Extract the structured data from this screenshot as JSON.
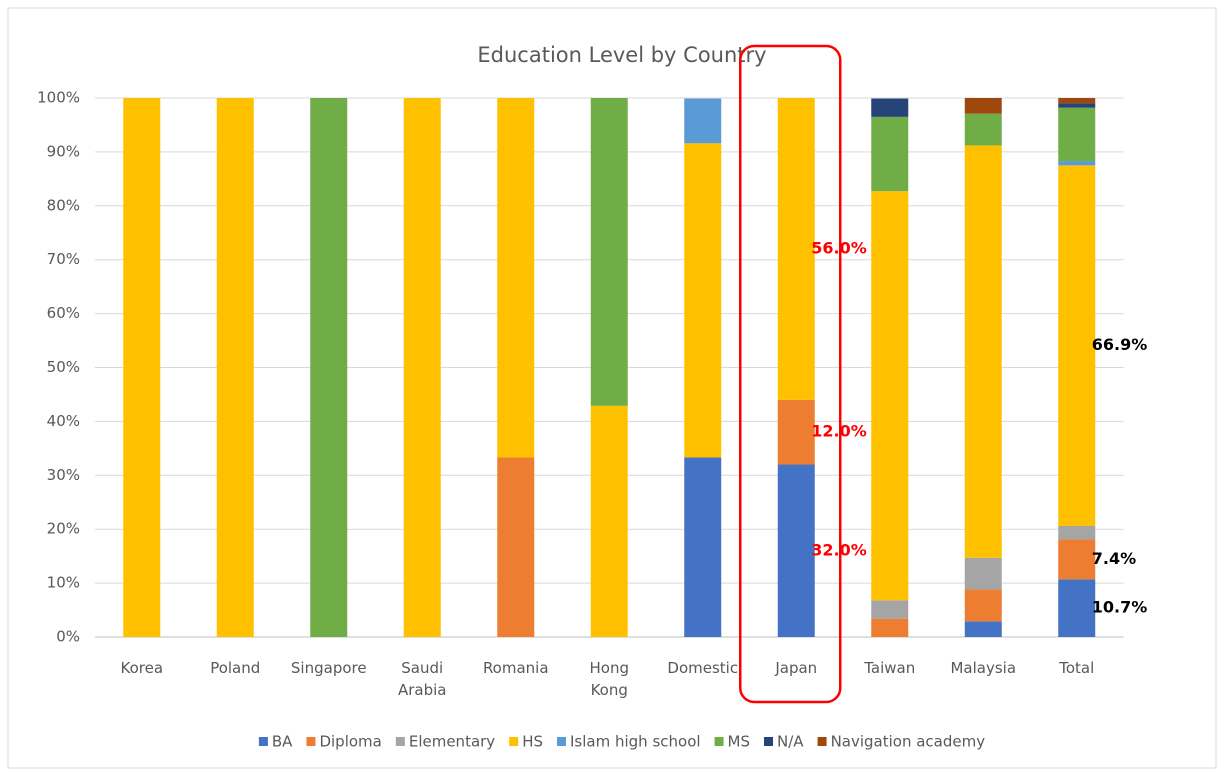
{
  "chart_data": {
    "type": "stacked_bar_100",
    "title": "Education Level by Country",
    "categories": [
      "Korea",
      "Poland",
      "Singapore",
      "Saudi\nArabia",
      "Romania",
      "Hong\nKong",
      "Domestic",
      "Japan",
      "Taiwan",
      "Malaysia",
      "Total"
    ],
    "series": [
      {
        "name": "BA",
        "color": "#4472c4",
        "values": [
          0,
          0,
          0,
          0,
          0,
          0,
          33.3,
          32,
          0,
          2.9,
          10.7
        ],
        "value_labels": [
          null,
          null,
          null,
          null,
          null,
          null,
          null,
          "32.0%",
          null,
          null,
          "10.7%"
        ]
      },
      {
        "name": "Diploma",
        "color": "#ed7d31",
        "values": [
          0,
          0,
          0,
          0,
          33.3,
          0,
          0,
          12,
          3.4,
          5.9,
          7.4
        ],
        "value_labels": [
          null,
          null,
          null,
          null,
          null,
          null,
          null,
          "12.0%",
          null,
          null,
          "7.4%"
        ]
      },
      {
        "name": "Elementary",
        "color": "#a5a5a5",
        "values": [
          0,
          0,
          0,
          0,
          0,
          0,
          0,
          0,
          3.4,
          5.9,
          2.5
        ]
      },
      {
        "name": "HS",
        "color": "#ffc000",
        "values": [
          100,
          100,
          0,
          100,
          66.7,
          42.9,
          58.3,
          56,
          75.9,
          76.5,
          66.9
        ],
        "value_labels": [
          null,
          null,
          null,
          null,
          null,
          null,
          null,
          "56.0%",
          null,
          null,
          "66.9%"
        ]
      },
      {
        "name": "Islam high school",
        "color": "#5b9bd5",
        "values": [
          0,
          0,
          0,
          0,
          0,
          0,
          8.3,
          0,
          0,
          0,
          0.8
        ]
      },
      {
        "name": "MS",
        "color": "#70ad47",
        "values": [
          0,
          0,
          100,
          0,
          0,
          57.1,
          0,
          0,
          13.8,
          5.9,
          9.9
        ]
      },
      {
        "name": "N/A",
        "color": "#264478",
        "values": [
          0,
          0,
          0,
          0,
          0,
          0,
          0,
          0,
          3.4,
          0,
          0.8
        ]
      },
      {
        "name": "Navigation academy",
        "color": "#9e480e",
        "values": [
          0,
          0,
          0,
          0,
          0,
          0,
          0,
          0,
          0,
          2.9,
          1.0
        ]
      }
    ],
    "ylim": [
      0,
      100
    ],
    "yticks": [
      {
        "value": 0,
        "label": "0%"
      },
      {
        "value": 10,
        "label": "10%"
      },
      {
        "value": 20,
        "label": "20%"
      },
      {
        "value": 30,
        "label": "30%"
      },
      {
        "value": 40,
        "label": "40%"
      },
      {
        "value": 50,
        "label": "50%"
      },
      {
        "value": 60,
        "label": "60%"
      },
      {
        "value": 70,
        "label": "70%"
      },
      {
        "value": 80,
        "label": "80%"
      },
      {
        "value": 90,
        "label": "90%"
      },
      {
        "value": 100,
        "label": "100%"
      }
    ],
    "grid": true,
    "legend": "bottom",
    "highlight": {
      "index": 7,
      "color": "#ff0000"
    }
  }
}
